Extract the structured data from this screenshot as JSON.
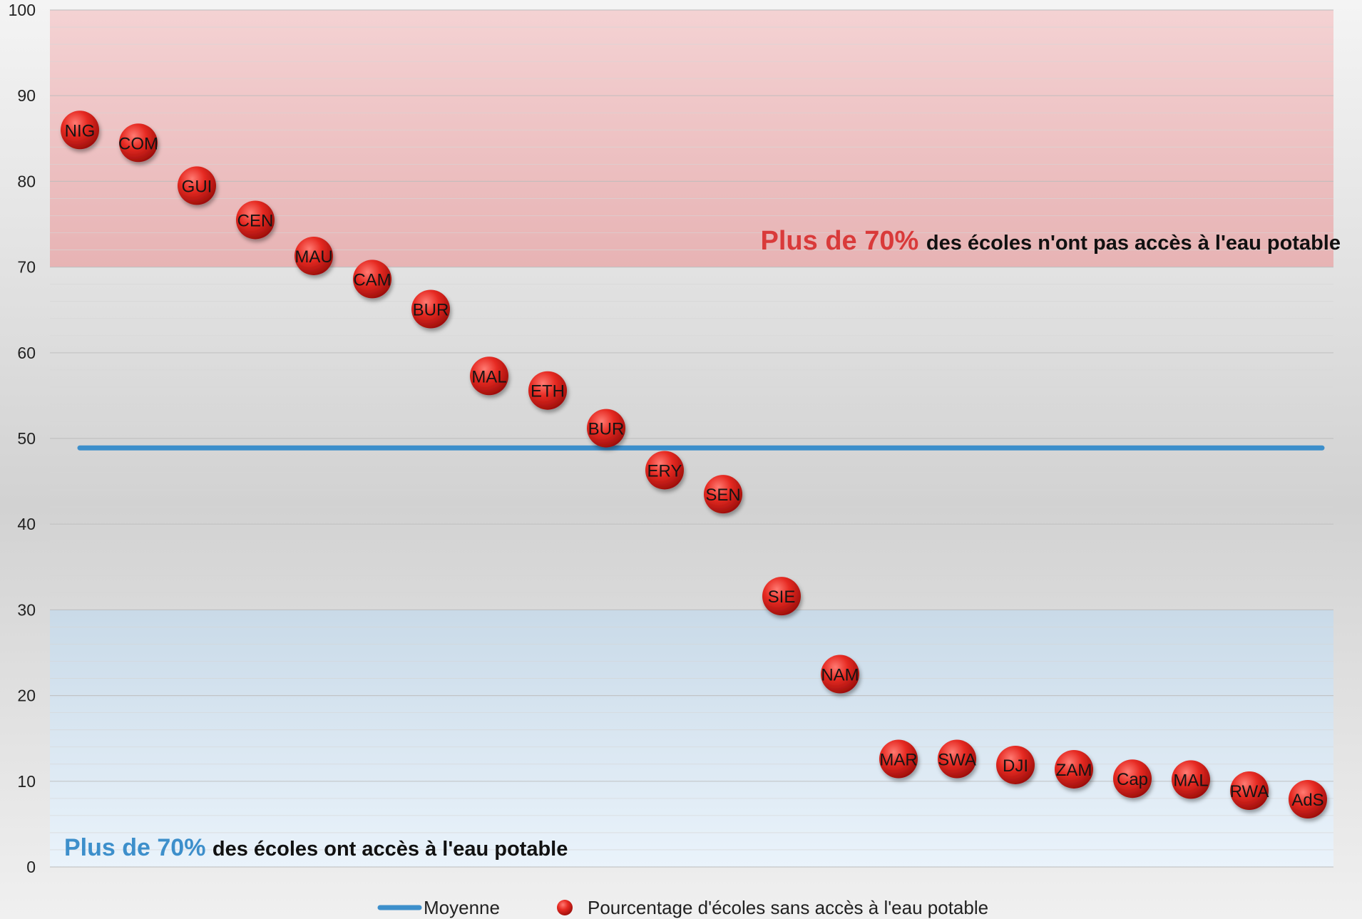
{
  "chart_data": {
    "type": "scatter",
    "title": "",
    "xlabel": "",
    "ylabel": "",
    "ylim": [
      0,
      100
    ],
    "yticks": [
      0,
      10,
      20,
      30,
      40,
      50,
      60,
      70,
      80,
      90,
      100
    ],
    "grid": true,
    "legend_position": "bottom",
    "categories": [
      "NIG",
      "COM",
      "GUI",
      "CEN",
      "MAU",
      "CAM",
      "BUR",
      "MAL",
      "ETH",
      "BUR",
      "ERY",
      "SEN",
      "SIE",
      "NAM",
      "MAR",
      "SWA",
      "DJI",
      "ZAM",
      "Cap",
      "MAL",
      "RWA",
      "AdS"
    ],
    "series": [
      {
        "name": "Pourcentage d'écoles sans accès à l'eau potable",
        "type": "scatter",
        "color": "#e32222",
        "values": [
          86,
          84.5,
          79.5,
          75.5,
          71.3,
          68.6,
          65.1,
          57.3,
          55.6,
          51.2,
          46.3,
          43.5,
          31.6,
          22.5,
          12.6,
          12.6,
          11.9,
          11.4,
          10.3,
          10.2,
          8.9,
          7.9
        ]
      },
      {
        "name": "Moyenne",
        "type": "line",
        "color": "#3d8fcb",
        "value": 48.9
      }
    ],
    "bands": [
      {
        "from": 70,
        "to": 100,
        "color": "#e8a9aa",
        "strong": "Plus de 70%",
        "rest": "des écoles n'ont pas accès à l'eau potable",
        "strong_color": "#d93a3a"
      },
      {
        "from": 0,
        "to": 30,
        "color": "#c5dcee",
        "strong": "Plus de 70%",
        "rest": "des écoles ont accès à l'eau potable",
        "strong_color": "#3d8fcb"
      }
    ]
  }
}
